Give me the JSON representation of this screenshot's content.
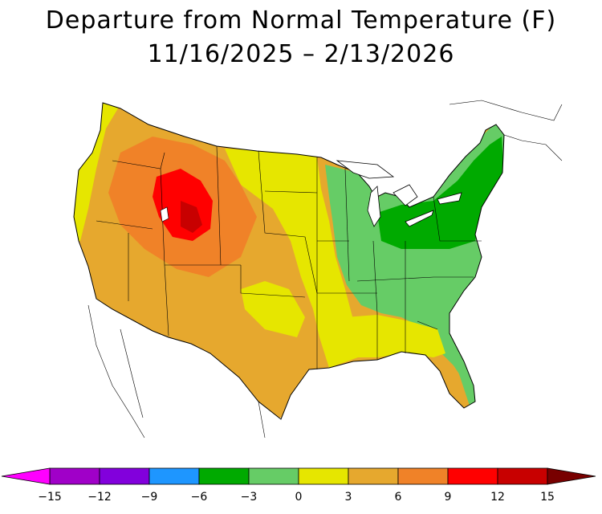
{
  "title": {
    "line1": "Departure from Normal Temperature (F)",
    "line2": "11/16/2025 – 2/13/2026"
  },
  "map": {
    "region": "Contiguous United States",
    "variable": "temperature departure from normal",
    "units": "F"
  },
  "legend": {
    "ticks": [
      "−15",
      "−12",
      "−9",
      "−6",
      "−3",
      "0",
      "3",
      "6",
      "9",
      "12",
      "15"
    ],
    "bins": [
      {
        "range": "-15 to -12",
        "color": "#a000c8"
      },
      {
        "range": "-12 to -9",
        "color": "#8200dc"
      },
      {
        "range": "-9 to -6",
        "color": "#1e96ff"
      },
      {
        "range": "-6 to -3",
        "color": "#00aa00"
      },
      {
        "range": "-3 to 0",
        "color": "#66cc66"
      },
      {
        "range": "0 to 3",
        "color": "#e6e600"
      },
      {
        "range": "3 to 6",
        "color": "#e6a82e"
      },
      {
        "range": "6 to 9",
        "color": "#f08228"
      },
      {
        "range": "9 to 12",
        "color": "#ff0000"
      },
      {
        "range": "12 to 15",
        "color": "#c80000"
      }
    ],
    "low_arrow_color": "#ff00ff",
    "high_arrow_color": "#780000"
  },
  "colors": {
    "strong_cool": "#00aa00",
    "cool": "#66cc66",
    "near_normal_warm": "#e6e600",
    "warm": "#e6a82e",
    "warmer": "#f08228",
    "hot": "#ff0000",
    "very_hot": "#c80000"
  }
}
